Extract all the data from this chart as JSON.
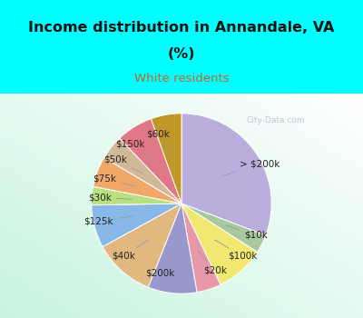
{
  "title_line1": "Income distribution in Annandale, VA",
  "title_line2": "(%)",
  "subtitle": "White residents",
  "title_color": "#111111",
  "subtitle_color": "#c06828",
  "bg_top": "#00ffff",
  "watermark": "City-Data.com",
  "labels": [
    "> $200k",
    "$10k",
    "$100k",
    "$20k",
    "$200k",
    "$40k",
    "$125k",
    "$30k",
    "$75k",
    "$50k",
    "$150k",
    "$60k"
  ],
  "values": [
    28,
    3,
    8,
    4,
    8,
    10,
    7,
    3,
    5,
    4,
    6,
    5
  ],
  "colors": [
    "#bbaedd",
    "#a8c8a0",
    "#f0e870",
    "#e898a8",
    "#9898cc",
    "#e0b880",
    "#88b8e8",
    "#b8e080",
    "#f0a868",
    "#d0b898",
    "#e07888",
    "#c09828"
  ],
  "label_fontsize": 7.5,
  "startangle": 90
}
